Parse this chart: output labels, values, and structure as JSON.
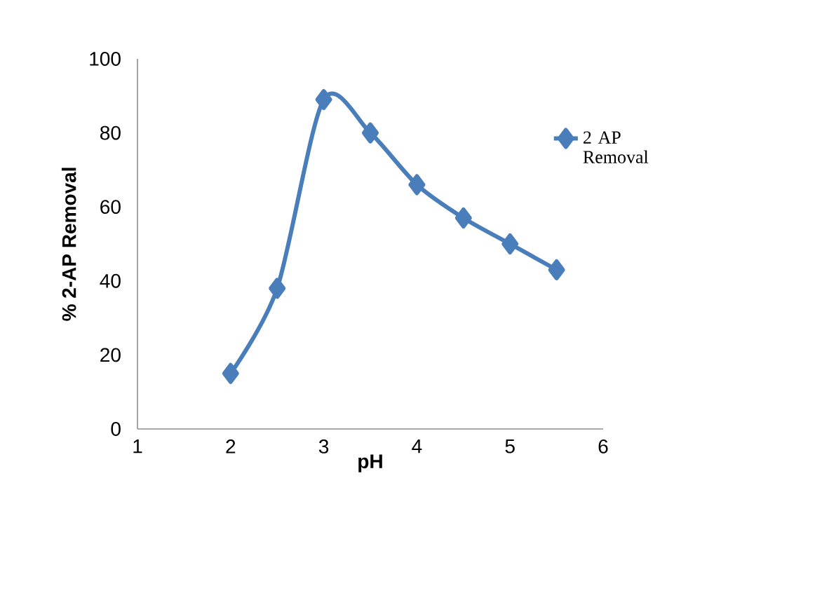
{
  "chart_data": {
    "type": "line",
    "xlabel": "pH",
    "ylabel": "% 2-AP Removal",
    "x": [
      2,
      2.5,
      3,
      3.5,
      4,
      4.5,
      5,
      5.5
    ],
    "series": [
      {
        "name": "2 AP Removal",
        "color": "#4a7ebb",
        "values": [
          15,
          38,
          89,
          80,
          66,
          57,
          50,
          43
        ]
      }
    ],
    "xlim": [
      1,
      6
    ],
    "ylim": [
      0,
      100
    ],
    "xticks": [
      1,
      2,
      3,
      4,
      5,
      6
    ],
    "yticks": [
      0,
      20,
      40,
      60,
      80,
      100
    ],
    "marker": "diamond",
    "line_style": "solid",
    "legend": "right",
    "grid": false
  }
}
